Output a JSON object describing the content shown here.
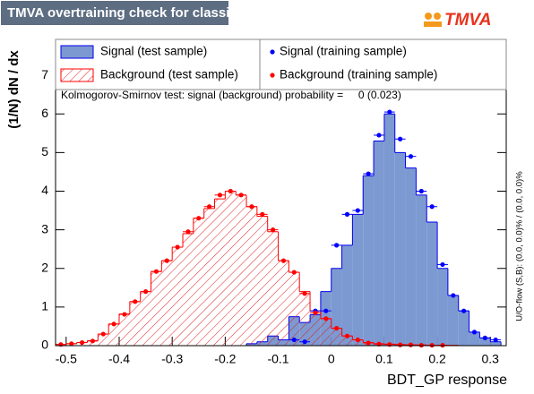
{
  "chart_data": {
    "type": "histogram",
    "title": "TMVA overtraining check for classifier: BDT_GP",
    "logo": "TMVA",
    "x_label": "BDT_GP response",
    "y_label": "(1/N) dN / dx",
    "annotation": "Kolmogorov-Smirnov test: signal (background) probability =     0 (0.023)",
    "side_note": "U/O-flow (S,B): (0.0, 0.0)% / (0.0, 0.0)%",
    "xlim": [
      -0.52,
      0.33
    ],
    "ylim": [
      0,
      7.93
    ],
    "xticks": [
      -0.5,
      -0.4,
      -0.3,
      -0.2,
      -0.1,
      0,
      0.1,
      0.2,
      0.3
    ],
    "yticks": [
      0,
      1,
      2,
      3,
      4,
      5,
      6,
      7
    ],
    "bins": [
      -0.52,
      -0.5,
      -0.48,
      -0.46,
      -0.44,
      -0.42,
      -0.4,
      -0.38,
      -0.36,
      -0.34,
      -0.32,
      -0.3,
      -0.28,
      -0.26,
      -0.24,
      -0.22,
      -0.2,
      -0.18,
      -0.16,
      -0.14,
      -0.12,
      -0.1,
      -0.08,
      -0.06,
      -0.04,
      -0.02,
      0,
      0.02,
      0.04,
      0.06,
      0.08,
      0.1,
      0.12,
      0.14,
      0.16,
      0.18,
      0.2,
      0.22,
      0.24,
      0.26,
      0.28,
      0.3,
      0.32
    ],
    "series": [
      {
        "name": "Signal (test sample)",
        "style": "filled",
        "color": "#7d99d1",
        "line_color": "#0000ee",
        "values": [
          0,
          0,
          0,
          0,
          0,
          0,
          0,
          0,
          0,
          0,
          0,
          0,
          0,
          0,
          0,
          0,
          0,
          0,
          0.05,
          0.1,
          0.25,
          0.15,
          0.75,
          0.6,
          0.8,
          1.4,
          2.0,
          2.6,
          3.4,
          4.4,
          5.3,
          6.0,
          5.0,
          4.6,
          3.9,
          3.2,
          2.0,
          1.3,
          0.9,
          0.35,
          0.2,
          0.1
        ]
      },
      {
        "name": "Background (test sample)",
        "style": "hatched",
        "color": "#e02020",
        "line_color": "#ff0000",
        "values": [
          0.03,
          0.05,
          0.08,
          0.13,
          0.3,
          0.56,
          0.82,
          1.14,
          1.4,
          1.92,
          2.2,
          2.55,
          2.9,
          3.3,
          3.55,
          3.8,
          4.0,
          3.9,
          3.6,
          3.35,
          2.95,
          2.2,
          1.9,
          1.4,
          0.9,
          0.7,
          0.45,
          0.25,
          0.15,
          0.08,
          0.05,
          0.04,
          0.03,
          0.02,
          0.02,
          0.01,
          0.01,
          0.01,
          0,
          0,
          0,
          0
        ]
      },
      {
        "name": "Signal (training sample)",
        "style": "points",
        "color": "#0000ff",
        "values": [
          null,
          null,
          null,
          null,
          null,
          null,
          null,
          null,
          null,
          null,
          null,
          null,
          null,
          null,
          null,
          null,
          null,
          null,
          null,
          null,
          null,
          null,
          0.15,
          0.1,
          0.9,
          0.9,
          2.6,
          3.4,
          3.5,
          4.45,
          5.45,
          6.05,
          5.35,
          4.9,
          4.0,
          3.6,
          2.1,
          1.3,
          0.9,
          0.35,
          0.2,
          0.15
        ]
      },
      {
        "name": "Background (training sample)",
        "style": "points",
        "color": "#ff0000",
        "values": [
          0.03,
          0.05,
          0.08,
          0.12,
          0.3,
          0.56,
          0.81,
          1.14,
          1.4,
          1.92,
          2.2,
          2.55,
          2.95,
          3.3,
          3.6,
          3.9,
          4.0,
          3.9,
          3.6,
          3.4,
          3.0,
          2.2,
          1.9,
          1.35,
          0.85,
          0.7,
          0.45,
          0.25,
          0.15,
          0.07,
          0.04,
          0.03,
          0.02,
          0.02,
          0.01,
          0.01,
          0.01,
          null,
          null,
          null,
          null,
          null
        ]
      }
    ]
  }
}
